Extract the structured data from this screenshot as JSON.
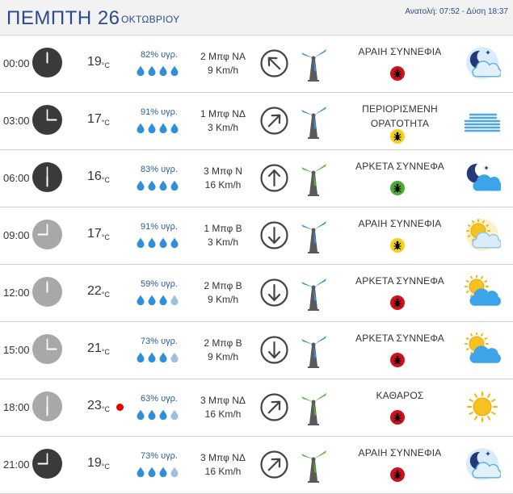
{
  "header": {
    "day": "ΠΕΜΠΤΗ 26",
    "month": "ΟΚΤΩΒΡΙΟΥ",
    "sun_times": "Ανατολή: 07:52 - Δύση 18:37"
  },
  "colors": {
    "accent": "#2a4b8d",
    "drop_full": "#2f8fd8",
    "drop_empty": "#9fbfdc",
    "bug_red": "#d0101a",
    "bug_yellow": "#f2d21c",
    "bug_green": "#4caa34",
    "turbine_blue": "#3f8fd9",
    "turbine_green": "#57b233"
  },
  "rows": [
    {
      "time": "00:00",
      "clock": "night",
      "temp": "19",
      "unit": "°C",
      "humidity": "82% υγρ.",
      "drops": 4,
      "wind_bft": "2 Μπφ ΝΑ",
      "wind_kmh": "9 Km/h",
      "arrow_icon": "arrow-up-left-icon",
      "turbine": "blue",
      "cond": "ΑΡΑΙΗ ΣΥΝΝΕΦΙΑ",
      "bug": "red",
      "weather_icon": "partly-cloudy-night-icon",
      "hot": false
    },
    {
      "time": "03:00",
      "clock": "night",
      "temp": "17",
      "unit": "°C",
      "humidity": "91% υγρ.",
      "drops": 4,
      "wind_bft": "1 Μπφ ΝΔ",
      "wind_kmh": "3 Km/h",
      "arrow_icon": "arrow-up-right-icon",
      "turbine": "blue",
      "cond": "ΠΕΡΙΟΡΙΣΜΕΝΗ ΟΡΑΤΟΤΗΤΑ",
      "bug": "yellow",
      "weather_icon": "fog-icon",
      "hot": false
    },
    {
      "time": "06:00",
      "clock": "night",
      "temp": "16",
      "unit": "°C",
      "humidity": "83% υγρ.",
      "drops": 4,
      "wind_bft": "3 Μπφ Ν",
      "wind_kmh": "16 Km/h",
      "arrow_icon": "arrow-up-icon",
      "turbine": "green",
      "cond": "ΑΡΚΕΤΑ ΣΥΝΝΕΦΑ",
      "bug": "green",
      "weather_icon": "cloudy-night-icon",
      "hot": false
    },
    {
      "time": "09:00",
      "clock": "day",
      "temp": "17",
      "unit": "°C",
      "humidity": "91% υγρ.",
      "drops": 4,
      "wind_bft": "1 Μπφ Β",
      "wind_kmh": "3 Km/h",
      "arrow_icon": "arrow-down-icon",
      "turbine": "blue",
      "cond": "ΑΡΑΙΗ ΣΥΝΝΕΦΙΑ",
      "bug": "yellow",
      "weather_icon": "hazy-sun-cloud-icon",
      "hot": false
    },
    {
      "time": "12:00",
      "clock": "day",
      "temp": "22",
      "unit": "°C",
      "humidity": "59% υγρ.",
      "drops": 3,
      "wind_bft": "2 Μπφ Β",
      "wind_kmh": "9 Km/h",
      "arrow_icon": "arrow-down-icon",
      "turbine": "blue",
      "cond": "ΑΡΚΕΤΑ ΣΥΝΝΕΦΑ",
      "bug": "red",
      "weather_icon": "sun-cloud-icon",
      "hot": false
    },
    {
      "time": "15:00",
      "clock": "day",
      "temp": "21",
      "unit": "°C",
      "humidity": "73% υγρ.",
      "drops": 3,
      "wind_bft": "2 Μπφ Β",
      "wind_kmh": "9 Km/h",
      "arrow_icon": "arrow-down-icon",
      "turbine": "blue",
      "cond": "ΑΡΚΕΤΑ ΣΥΝΝΕΦΑ",
      "bug": "red",
      "weather_icon": "sun-cloud-icon",
      "hot": false
    },
    {
      "time": "18:00",
      "clock": "day",
      "temp": "23",
      "unit": "°C",
      "humidity": "63% υγρ.",
      "drops": 3,
      "wind_bft": "3 Μπφ ΝΔ",
      "wind_kmh": "16 Km/h",
      "arrow_icon": "arrow-up-right-icon",
      "turbine": "green",
      "cond": "ΚΑΘΑΡΟΣ",
      "bug": "red",
      "weather_icon": "sun-icon",
      "hot": true
    },
    {
      "time": "21:00",
      "clock": "night",
      "temp": "19",
      "unit": "°C",
      "humidity": "73% υγρ.",
      "drops": 3,
      "wind_bft": "3 Μπφ ΝΔ",
      "wind_kmh": "16 Km/h",
      "arrow_icon": "arrow-up-right-icon",
      "turbine": "green",
      "cond": "ΑΡΑΙΗ ΣΥΝΝΕΦΙΑ",
      "bug": "red",
      "weather_icon": "partly-cloudy-night-icon",
      "hot": false
    }
  ]
}
